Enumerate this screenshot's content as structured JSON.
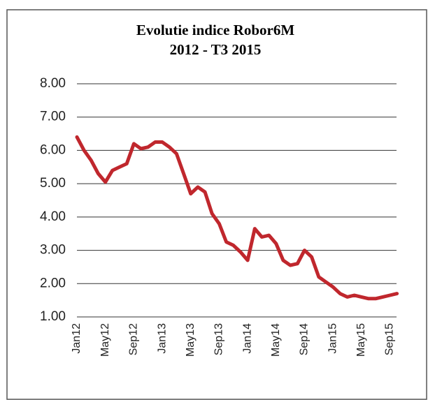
{
  "chart_data": {
    "type": "line",
    "title_lines": [
      "Evolutie indice Robor6M",
      "2012 - T3 2015"
    ],
    "categories": [
      "Jan12",
      null,
      null,
      null,
      "May12",
      null,
      null,
      null,
      "Sep12",
      null,
      null,
      null,
      "Jan13",
      null,
      null,
      null,
      "May13",
      null,
      null,
      null,
      "Sep13",
      null,
      null,
      null,
      "Jan14",
      null,
      null,
      null,
      "May14",
      null,
      null,
      null,
      "Sep14",
      null,
      null,
      null,
      "Jan15",
      null,
      null,
      null,
      "May15",
      null,
      null,
      null,
      "Sep15",
      null
    ],
    "values": [
      6.4,
      6.0,
      5.7,
      5.3,
      5.05,
      5.4,
      5.5,
      5.6,
      6.2,
      6.05,
      6.1,
      6.25,
      6.25,
      6.1,
      5.9,
      5.3,
      4.7,
      4.9,
      4.75,
      4.1,
      3.8,
      3.25,
      3.15,
      2.95,
      2.7,
      3.65,
      3.4,
      3.45,
      3.2,
      2.7,
      2.55,
      2.6,
      3.0,
      2.8,
      2.2,
      2.05,
      1.9,
      1.7,
      1.6,
      1.65,
      1.6,
      1.55,
      1.55,
      1.6,
      1.65,
      1.7
    ],
    "color": "#c0272d",
    "ylim": [
      1,
      8
    ],
    "yticks": [
      {
        "value": 1,
        "label": "1.00"
      },
      {
        "value": 2,
        "label": "2.00"
      },
      {
        "value": 3,
        "label": "3.00"
      },
      {
        "value": 4,
        "label": "4.00"
      },
      {
        "value": 5,
        "label": "5.00"
      },
      {
        "value": 6,
        "label": "6.00"
      },
      {
        "value": 7,
        "label": "7.00"
      },
      {
        "value": 8,
        "label": "8.00"
      }
    ],
    "grid": true
  }
}
